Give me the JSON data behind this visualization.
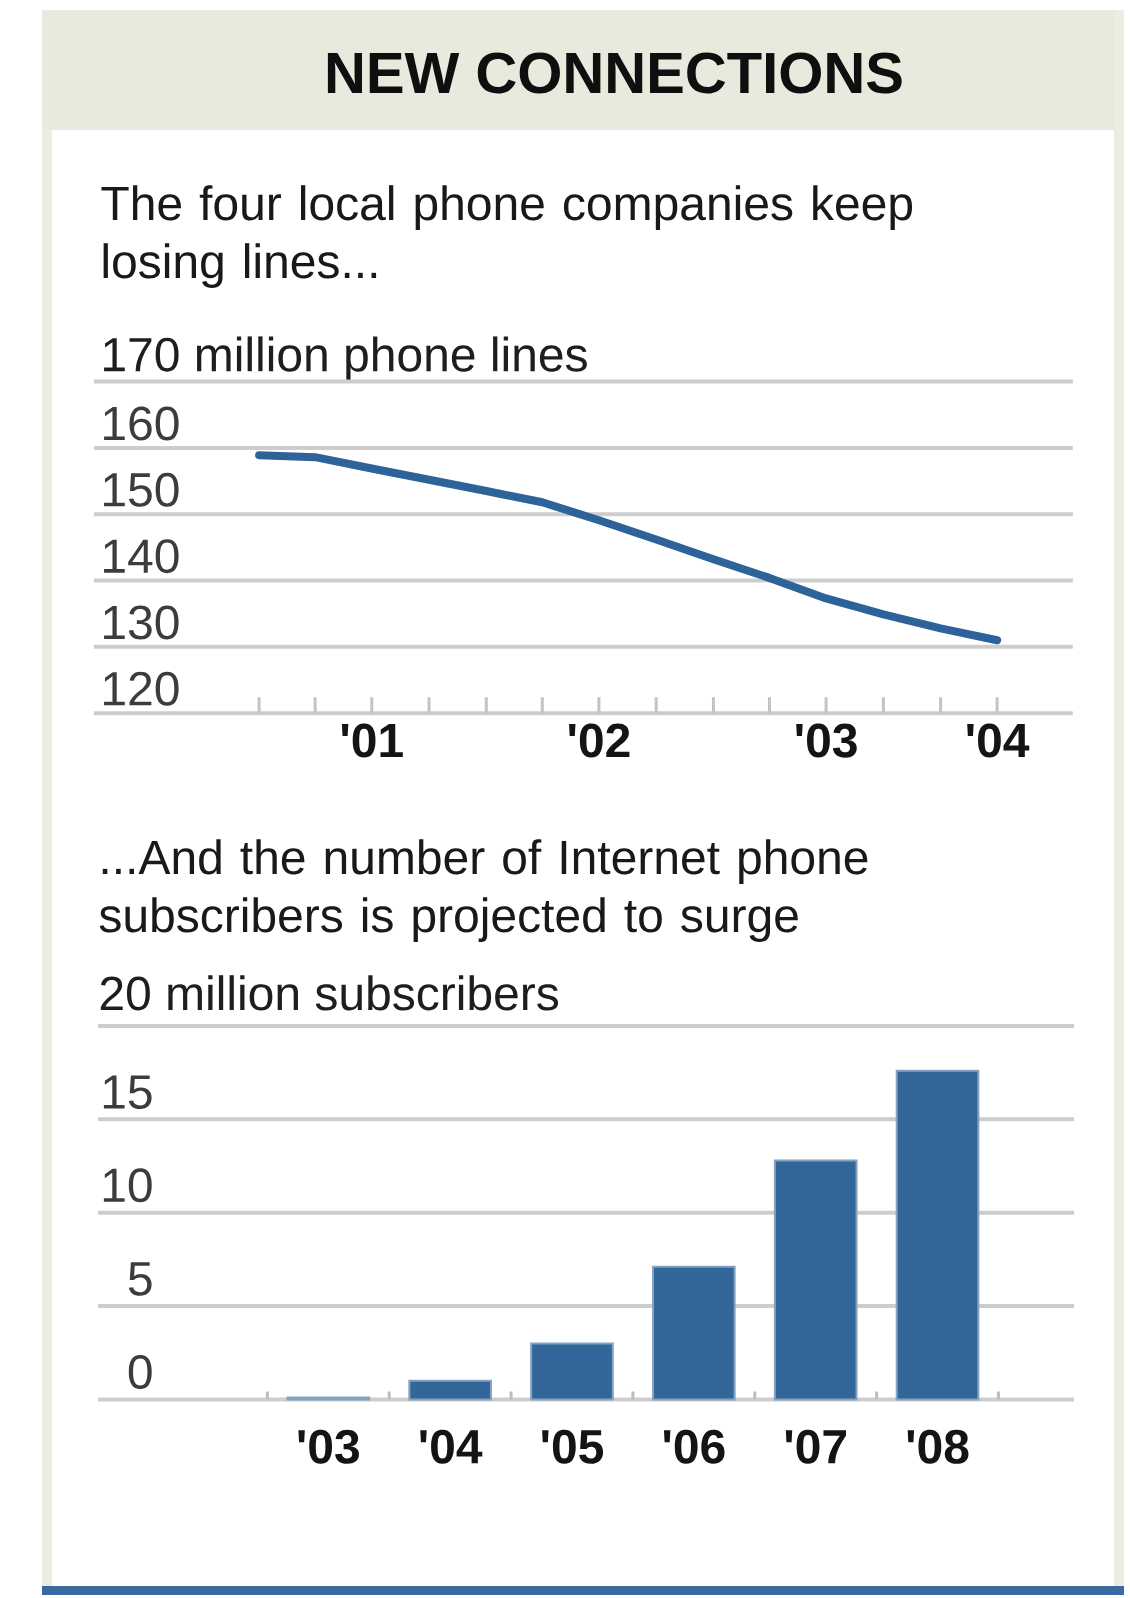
{
  "chart_data": [
    {
      "type": "line",
      "title": "NEW CONNECTIONS",
      "subtitle": "The four local phone companies keep losing lines...",
      "ylabel": "170 million phone lines",
      "x": [
        "2001-01",
        "2001-04",
        "2001-07",
        "2001-10",
        "2002-01",
        "2002-04",
        "2002-07",
        "2002-10",
        "2003-01",
        "2003-04",
        "2003-07",
        "2003-10",
        "2004-01",
        "2004-04"
      ],
      "values": [
        158.9,
        158.6,
        156.9,
        155.2,
        153.5,
        151.8,
        149.1,
        146.2,
        143.2,
        140.4,
        137.3,
        134.9,
        132.8,
        131.0
      ],
      "color": "#2d6399",
      "xlim": [
        "2000-04-10",
        "2004-08-01"
      ],
      "ylim": [
        120,
        170
      ],
      "xticks": [
        {
          "value": "2001-01",
          "label": null
        },
        {
          "value": "2001-04",
          "label": null
        },
        {
          "value": "2001-07",
          "label": "'01"
        },
        {
          "value": "2001-10",
          "label": null
        },
        {
          "value": "2002-01",
          "label": null
        },
        {
          "value": "2002-04",
          "label": null
        },
        {
          "value": "2002-07",
          "label": "'02"
        },
        {
          "value": "2002-10",
          "label": null
        },
        {
          "value": "2003-01",
          "label": null
        },
        {
          "value": "2003-04",
          "label": null
        },
        {
          "value": "2003-07",
          "label": "'03"
        },
        {
          "value": "2003-10",
          "label": null
        },
        {
          "value": "2004-01",
          "label": null
        },
        {
          "value": "2004-04",
          "label": "'04"
        }
      ],
      "yticks": [
        120,
        130,
        140,
        150,
        160,
        {
          "value": 170,
          "label": null
        }
      ],
      "grid": "y"
    },
    {
      "type": "bar",
      "subtitle": "...And the number of Internet phone subscribers is projected to surge",
      "ylabel": "20 million subscribers",
      "categories": [
        "'03",
        "'04",
        "'05",
        "'06",
        "'07",
        "'08"
      ],
      "values": [
        0.1,
        1.0,
        3.0,
        7.1,
        12.8,
        17.6
      ],
      "color": "#336699",
      "ylim": [
        0,
        20
      ],
      "yticks": [
        0,
        5,
        10,
        15,
        {
          "value": 20,
          "label": null
        }
      ],
      "grid": "y"
    }
  ]
}
